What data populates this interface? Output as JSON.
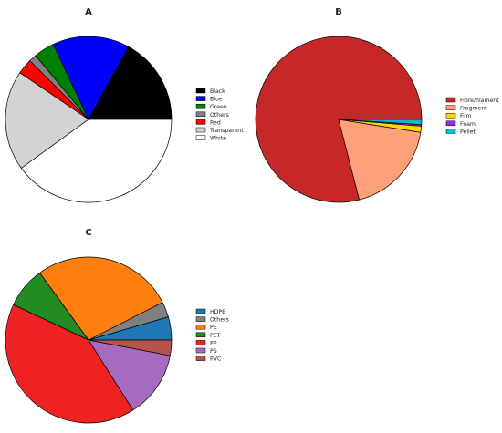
{
  "chart_data": [
    {
      "type": "pie",
      "panel_label": "A",
      "categories": [
        "Black",
        "Blue",
        "Green",
        "Others",
        "Red",
        "Transparent",
        "White"
      ],
      "values": [
        17,
        15,
        4,
        1.5,
        3,
        19.5,
        40
      ],
      "colors": [
        "#000000",
        "#0000ff",
        "#008000",
        "#808080",
        "#ff0000",
        "#d3d3d3",
        "#ffffff"
      ],
      "legend": "right"
    },
    {
      "type": "pie",
      "panel_label": "B",
      "categories": [
        "Fibre/filament",
        "Fragment",
        "Film",
        "Foam",
        "Pellet"
      ],
      "values": [
        79,
        18.5,
        1.2,
        0.3,
        1.0
      ],
      "colors": [
        "#c62828",
        "#ffa07a",
        "#ffd700",
        "#9932cc",
        "#00bcd4"
      ],
      "legend": "right"
    },
    {
      "type": "pie",
      "panel_label": "C",
      "categories": [
        "HDPE",
        "Others",
        "PE",
        "PET",
        "PP",
        "PS",
        "PVC"
      ],
      "values": [
        4.5,
        3,
        27.5,
        8,
        41,
        13,
        3
      ],
      "colors": [
        "#1f77b4",
        "#808080",
        "#ff7f0e",
        "#228b22",
        "#ee2222",
        "#a66bbe",
        "#b5544b"
      ],
      "legend": "right"
    }
  ]
}
